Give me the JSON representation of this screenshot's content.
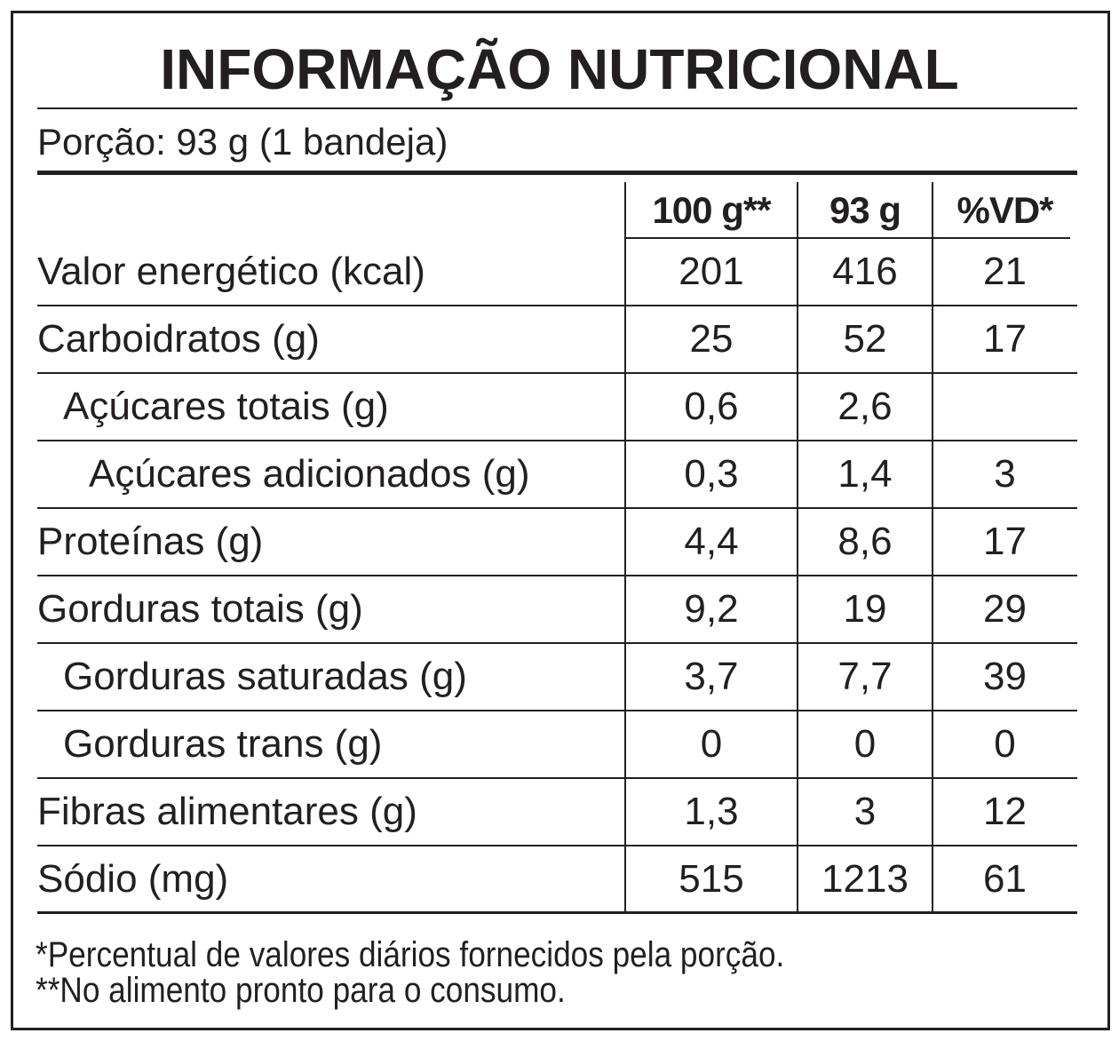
{
  "header": {
    "title": "INFORMAÇÃO NUTRICIONAL",
    "portion": "Porção: 93 g (1 bandeja)"
  },
  "table": {
    "columns": [
      "100 g**",
      "93 g",
      "%VD*"
    ],
    "rows": [
      {
        "label": "Valor energético (kcal)",
        "values": [
          "201",
          "416",
          "21"
        ]
      },
      {
        "label": "Carboidratos (g)",
        "values": [
          "25",
          "52",
          "17"
        ]
      },
      {
        "label": "Açúcares totais (g)",
        "values": [
          "0,6",
          "2,6",
          null
        ]
      },
      {
        "label": "Açúcares adicionados (g)",
        "values": [
          "0,3",
          "1,4",
          "3"
        ]
      },
      {
        "label": "Proteínas (g)",
        "values": [
          "4,4",
          "8,6",
          "17"
        ]
      },
      {
        "label": "Gorduras totais (g)",
        "values": [
          "9,2",
          "19",
          "29"
        ]
      },
      {
        "label": "Gorduras saturadas (g)",
        "values": [
          "3,7",
          "7,7",
          "39"
        ]
      },
      {
        "label": "Gorduras trans (g)",
        "values": [
          "0",
          "0",
          "0"
        ]
      },
      {
        "label": "Fibras alimentares (g)",
        "values": [
          "1,3",
          "3",
          "12"
        ]
      },
      {
        "label": "Sódio (mg)",
        "values": [
          "515",
          "1213",
          "61"
        ]
      }
    ]
  },
  "footnotes": [
    "*Percentual de valores diários fornecidos pela porção.",
    "**No alimento pronto para o consumo."
  ]
}
